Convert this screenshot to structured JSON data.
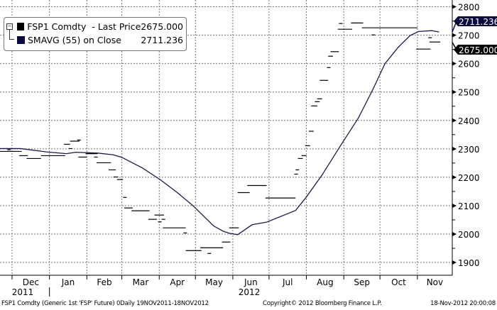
{
  "chart_data": {
    "type": "line",
    "title": "",
    "x_unit": "days since 19-Nov-2011",
    "xlim": [
      0,
      366
    ],
    "ylim": [
      1860,
      2820
    ],
    "grid": true,
    "legend_position": "top-left",
    "y_ticks": [
      1900,
      2000,
      2100,
      2200,
      2300,
      2400,
      2500,
      2600,
      2700,
      2800
    ],
    "y_tick_labels": [
      "1900",
      "2000",
      "2100",
      "2200",
      "2300",
      "2400",
      "2500",
      "2600",
      "2700",
      "2800"
    ],
    "x_ticks": [
      {
        "day": 12,
        "label": "Dec"
      },
      {
        "day": 43,
        "label": "Jan"
      },
      {
        "day": 74,
        "label": "Feb"
      },
      {
        "day": 103,
        "label": "Mar"
      },
      {
        "day": 134,
        "label": "Apr"
      },
      {
        "day": 164,
        "label": "May"
      },
      {
        "day": 195,
        "label": "Jun"
      },
      {
        "day": 225,
        "label": "Jul"
      },
      {
        "day": 256,
        "label": "Aug"
      },
      {
        "day": 287,
        "label": "Sep"
      },
      {
        "day": 317,
        "label": "Oct"
      },
      {
        "day": 348,
        "label": "Nov"
      }
    ],
    "years": [
      {
        "label": "2011"
      },
      {
        "label": "2012"
      }
    ],
    "series": [
      {
        "name": "FSP1 Comdty - Last Price",
        "last": "2675.000",
        "color": "#000000",
        "style": "step-segments",
        "segments": [
          [
            8,
            11,
            2297
          ],
          [
            2,
            20,
            2291
          ],
          [
            18,
            25,
            2276
          ],
          [
            24,
            36,
            2266
          ],
          [
            36,
            56,
            2276
          ],
          [
            55,
            60,
            2316
          ],
          [
            60,
            68,
            2327
          ],
          [
            66,
            69,
            2331
          ],
          [
            59,
            62,
            2301
          ],
          [
            73,
            83,
            2283
          ],
          [
            67,
            74,
            2271
          ],
          [
            80,
            83,
            2271
          ],
          [
            82,
            94,
            2251
          ],
          [
            92,
            98,
            2226
          ],
          [
            96,
            100,
            2201
          ],
          [
            99,
            104,
            2192
          ],
          [
            104,
            107,
            2129
          ],
          [
            105,
            112,
            2092
          ],
          [
            111,
            126,
            2082
          ],
          [
            130,
            138,
            2067
          ],
          [
            125,
            132,
            2052
          ],
          [
            136,
            139,
            2052
          ],
          [
            133,
            136,
            2043
          ],
          [
            137,
            156,
            2022
          ],
          [
            154,
            157,
            2004
          ],
          [
            156,
            169,
            1942
          ],
          [
            168,
            187,
            1952
          ],
          [
            174,
            177,
            1932
          ],
          [
            186,
            193,
            1972
          ],
          [
            192,
            200,
            2022
          ],
          [
            199,
            209,
            2146
          ],
          [
            207,
            223,
            2171
          ],
          [
            222,
            247,
            2127
          ],
          [
            246,
            249,
            2211
          ],
          [
            247,
            250,
            2226
          ],
          [
            249,
            253,
            2266
          ],
          [
            252,
            256,
            2276
          ],
          [
            255,
            259,
            2311
          ],
          [
            258,
            262,
            2362
          ],
          [
            260,
            265,
            2451
          ],
          [
            263,
            267,
            2466
          ],
          [
            265,
            269,
            2476
          ],
          [
            267,
            274,
            2541
          ],
          [
            273,
            276,
            2586
          ],
          [
            274,
            278,
            2626
          ],
          [
            276,
            283,
            2642
          ],
          [
            282,
            294,
            2721
          ],
          [
            283,
            286,
            2741
          ],
          [
            293,
            303,
            2743
          ],
          [
            302,
            348,
            2726
          ],
          [
            310,
            313,
            2701
          ],
          [
            347,
            359,
            2651
          ],
          [
            357,
            360,
            2691
          ],
          [
            358,
            367,
            2676
          ]
        ]
      },
      {
        "name": "SMAVG (55) on Close",
        "last": "2711.236",
        "color": "#1a1a4a",
        "style": "line",
        "points": [
          [
            0,
            2301
          ],
          [
            19,
            2301
          ],
          [
            41,
            2289
          ],
          [
            57,
            2283
          ],
          [
            65,
            2288
          ],
          [
            83,
            2285
          ],
          [
            96,
            2279
          ],
          [
            103,
            2270
          ],
          [
            120,
            2233
          ],
          [
            135,
            2191
          ],
          [
            149,
            2146
          ],
          [
            162,
            2100
          ],
          [
            179,
            2029
          ],
          [
            187,
            2010
          ],
          [
            193,
            2002
          ],
          [
            199,
            1998
          ],
          [
            211,
            2033
          ],
          [
            223,
            2042
          ],
          [
            247,
            2083
          ],
          [
            255,
            2125
          ],
          [
            269,
            2208
          ],
          [
            285,
            2316
          ],
          [
            299,
            2408
          ],
          [
            311,
            2508
          ],
          [
            321,
            2599
          ],
          [
            332,
            2657
          ],
          [
            342,
            2699
          ],
          [
            349,
            2713
          ],
          [
            360,
            2716
          ],
          [
            366,
            2711
          ]
        ]
      }
    ]
  },
  "legend": {
    "items": [
      {
        "label": "FSP1 Comdty  - Last Price",
        "value": "2675.000",
        "color": "#000000"
      },
      {
        "label": "SMAVG (55) on Close",
        "value": "2711.236",
        "color": "#0a0a40"
      }
    ]
  },
  "footer": {
    "left": "FSP1 Comdty (Generic 1st 'FSP' Future) 0Daily 19NOV2011-18NOV2012",
    "center": "Copyright© 2012 Bloomberg Finance L.P.",
    "right": "18-Nov-2012 20:00:08"
  }
}
